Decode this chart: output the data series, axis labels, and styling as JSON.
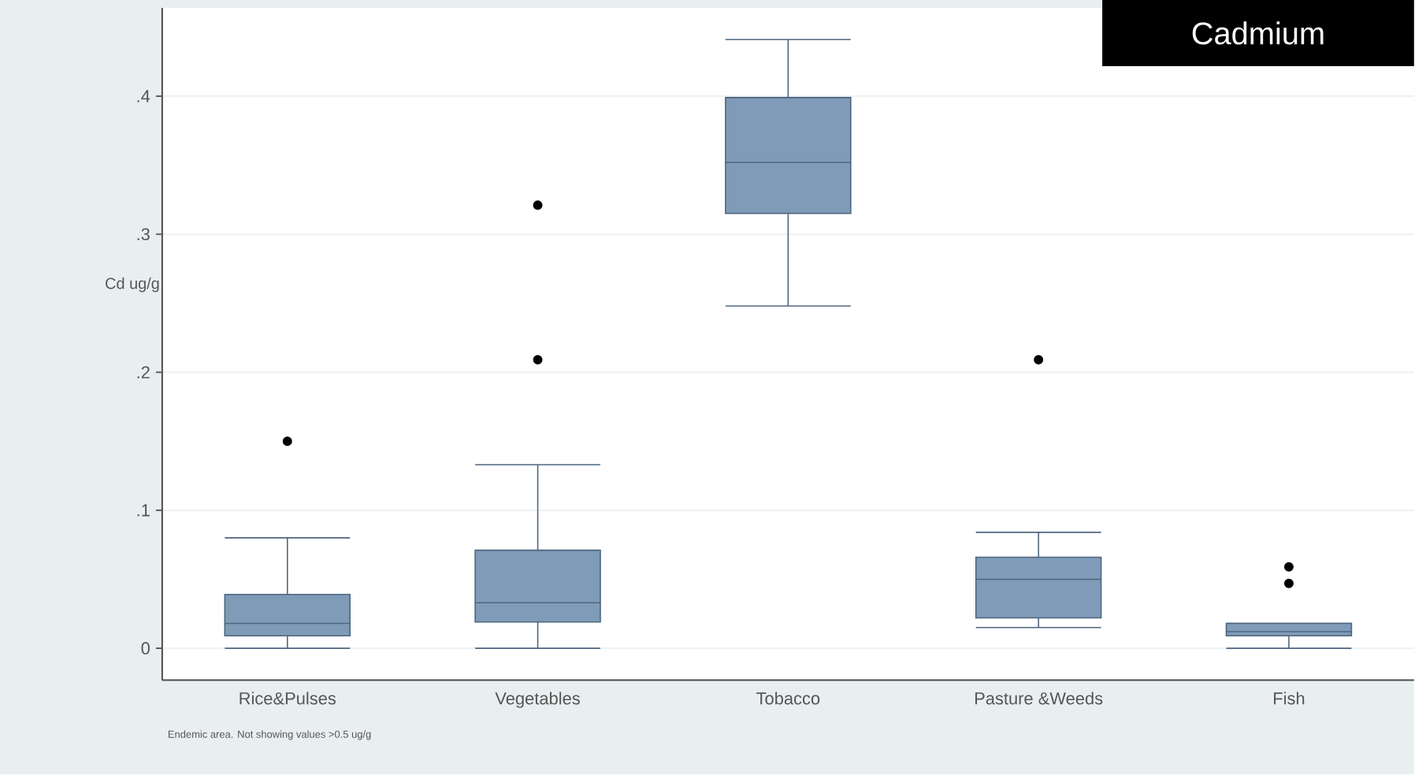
{
  "chart_data": {
    "type": "box",
    "title": "Cadmium",
    "ylabel": "Cd ug/g",
    "annotations": [
      "Endemic area. Not showing values >0.5 ug/g"
    ],
    "categories": [
      "Rice&Pulses",
      "Vegetables",
      "Tobacco",
      "Pasture &Weeds",
      "Fish"
    ],
    "boxes": [
      {
        "low": 0,
        "q1": 0.009,
        "median": 0.018,
        "q3": 0.039,
        "high": 0.08,
        "outliers": [
          0.15
        ]
      },
      {
        "low": 0,
        "q1": 0.019,
        "median": 0.033,
        "q3": 0.071,
        "high": 0.133,
        "outliers": [
          0.209,
          0.321
        ]
      },
      {
        "low": 0.248,
        "q1": 0.315,
        "median": 0.352,
        "q3": 0.399,
        "high": 0.441
      },
      {
        "low": 0.015,
        "q1": 0.022,
        "median": 0.05,
        "q3": 0.066,
        "high": 0.084,
        "outliers": [
          0.209
        ]
      },
      {
        "low": 0,
        "q1": 0.009,
        "median": 0.012,
        "q3": 0.018,
        "high": 0.018,
        "outliers": [
          0.047,
          0.059
        ]
      }
    ],
    "color": "#7f9bb7",
    "ylim": [
      -0.023,
      0.464
    ],
    "yticks": [
      0,
      {
        "value": 0.1,
        "label": ".1"
      },
      {
        "value": 0.2,
        "label": ".2"
      },
      {
        "value": 0.3,
        "label": ".3"
      },
      {
        "value": 0.4,
        "label": ".4"
      }
    ],
    "grid": "y"
  }
}
